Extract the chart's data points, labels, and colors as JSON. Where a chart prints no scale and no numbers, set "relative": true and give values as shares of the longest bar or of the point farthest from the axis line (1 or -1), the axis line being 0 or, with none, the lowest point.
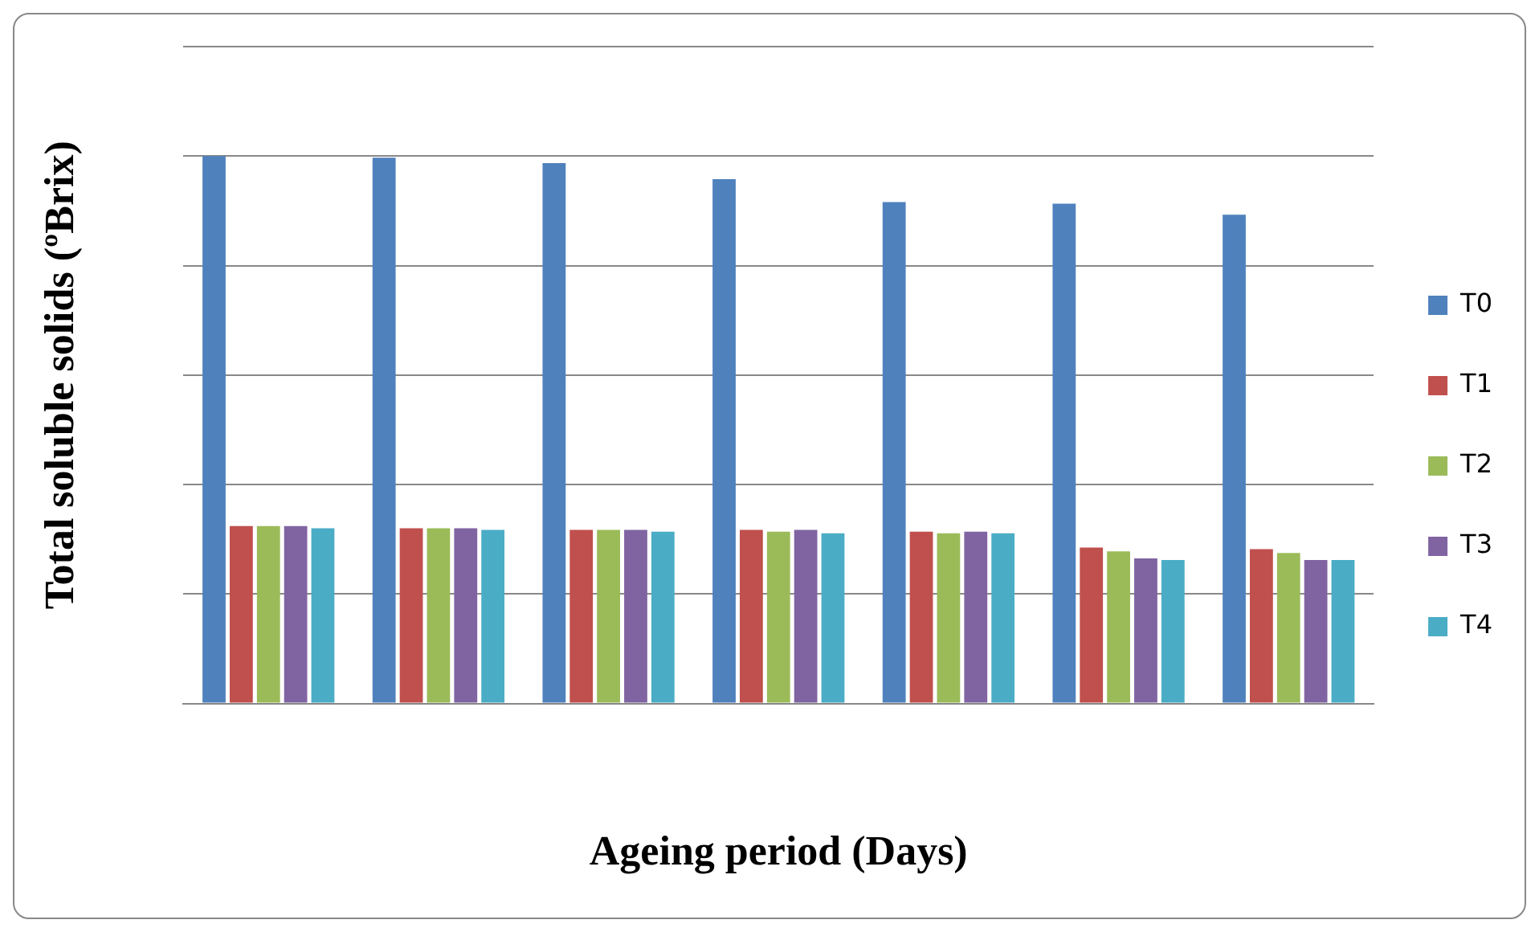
{
  "chart_data": {
    "type": "bar",
    "relative": true,
    "xlabel": "Ageing period (Days)",
    "ylabel": "Total soluble solids (ºBrix)",
    "categories": [
      null,
      null,
      null,
      null,
      null,
      null,
      null
    ],
    "grid": "y",
    "legend": "right",
    "tick_labels": false,
    "series": [
      {
        "name": "T0",
        "color": "#4f81bd",
        "values": [
          1,
          0.997,
          0.987,
          0.958,
          0.916,
          0.913,
          0.893
        ]
      },
      {
        "name": "T1",
        "color": "#c0504d",
        "values": [
          0.324,
          0.32,
          0.317,
          0.317,
          0.314,
          0.285,
          0.282
        ]
      },
      {
        "name": "T2",
        "color": "#9bbb59",
        "values": [
          0.324,
          0.32,
          0.317,
          0.314,
          0.311,
          0.278,
          0.275
        ]
      },
      {
        "name": "T3",
        "color": "#8064a2",
        "values": [
          0.324,
          0.32,
          0.317,
          0.317,
          0.314,
          0.265,
          0.262
        ]
      },
      {
        "name": "T4",
        "color": "#4bacc6",
        "values": [
          0.32,
          0.317,
          0.314,
          0.311,
          0.311,
          0.262,
          0.262
        ]
      }
    ]
  }
}
